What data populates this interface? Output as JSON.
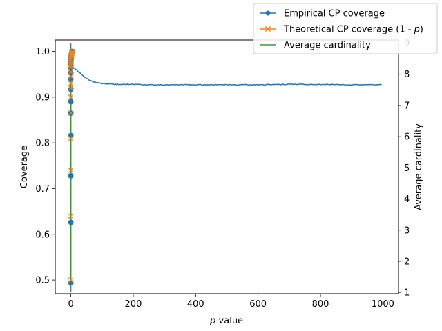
{
  "chart_data": {
    "type": "line",
    "title": "",
    "xlabel": "-value",
    "xlabel_italic_prefix": "p",
    "ylabel_left": "Coverage",
    "ylabel_right": "Average cardinality",
    "xlim": [
      -50,
      1050
    ],
    "ylim_left": [
      0.47,
      1.025
    ],
    "ylim_right": [
      0.96,
      9.1
    ],
    "xticks": [
      0,
      200,
      400,
      600,
      800,
      1000
    ],
    "yticks_left": [
      0.5,
      0.6,
      0.7,
      0.8,
      0.9,
      1.0
    ],
    "yticks_right": [
      1,
      2,
      3,
      4,
      5,
      6,
      7,
      8,
      9
    ],
    "legend_position": "top-right",
    "series": [
      {
        "name": "Empirical CP coverage",
        "axis": "left",
        "color": "#1f77b4",
        "marker": "circle",
        "x": [
          0,
          0,
          0,
          0,
          0,
          0,
          0,
          0,
          0,
          0,
          0,
          0,
          1,
          1,
          1,
          2,
          2,
          3,
          3,
          4,
          5
        ],
        "y": [
          0.494,
          0.626,
          0.728,
          0.816,
          0.865,
          0.89,
          0.917,
          0.94,
          0.953,
          0.963,
          0.972,
          0.978,
          0.983,
          0.987,
          0.99,
          0.993,
          0.995,
          0.997,
          0.998,
          0.999,
          1.0
        ],
        "tail_x": [
          6,
          10,
          20,
          30,
          40,
          50,
          60,
          70,
          80,
          90,
          100,
          120,
          150,
          200,
          250,
          300,
          400,
          500,
          600,
          700,
          800,
          900,
          1000
        ],
        "tail_y": [
          0.967,
          0.963,
          0.958,
          0.952,
          0.946,
          0.941,
          0.937,
          0.934,
          0.932,
          0.931,
          0.93,
          0.929,
          0.928,
          0.928,
          0.927,
          0.927,
          0.927,
          0.927,
          0.927,
          0.928,
          0.928,
          0.927,
          0.927
        ]
      },
      {
        "name": "Theoretical CP coverage (1 - p)",
        "axis": "left",
        "color": "#ff7f0e",
        "marker": "x",
        "x": [
          0,
          0,
          0,
          0,
          0,
          0,
          0,
          0,
          0,
          0,
          0,
          0,
          1,
          1,
          1,
          2,
          2,
          3,
          3,
          4,
          5
        ],
        "y": [
          0.5,
          0.64,
          0.74,
          0.81,
          0.865,
          0.9,
          0.92,
          0.93,
          0.945,
          0.955,
          0.965,
          0.97,
          0.975,
          0.98,
          0.985,
          0.99,
          0.992,
          0.995,
          0.997,
          0.998,
          1.0
        ]
      },
      {
        "name": "Average cardinality",
        "axis": "right",
        "color": "#2ca02c",
        "marker": "none",
        "x": [
          0,
          0
        ],
        "y": [
          1.0,
          9.0
        ]
      }
    ]
  },
  "legend": {
    "entries": [
      {
        "label_pre": "Empirical CP coverage",
        "label_italic": "",
        "label_post": ""
      },
      {
        "label_pre": "Theoretical CP coverage (1 - ",
        "label_italic": "p",
        "label_post": ")"
      },
      {
        "label_pre": "Average cardinality",
        "label_italic": "",
        "label_post": ""
      }
    ]
  }
}
